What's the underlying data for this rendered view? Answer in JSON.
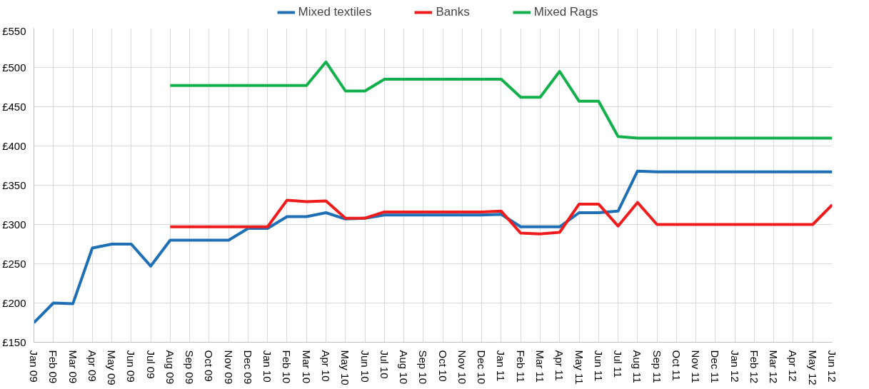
{
  "chart_data": {
    "type": "line",
    "categories": [
      "Jan 09",
      "Feb 09",
      "Mar 09",
      "Apr 09",
      "May 09",
      "Jun 09",
      "Jul 09",
      "Aug 09",
      "Sep 09",
      "Oct 09",
      "Nov 09",
      "Dec 09",
      "Jan 10",
      "Feb 10",
      "Mar 10",
      "Apr 10",
      "May 10",
      "Jun 10",
      "Jul 10",
      "Aug 10",
      "Sep 10",
      "Oct 10",
      "Nov 10",
      "Dec 10",
      "Jan 11",
      "Feb 11",
      "Mar 11",
      "Apr 11",
      "May 11",
      "Jun 11",
      "Jul 11",
      "Aug 11",
      "Sep 11",
      "Oct 11",
      "Nov 11",
      "Dec 11",
      "Jan 12",
      "Feb 12",
      "Mar 12",
      "Apr 12",
      "May 12",
      "Jun 12"
    ],
    "series": [
      {
        "name": "Mixed textiles",
        "color": "#1f6fb5",
        "values": [
          175,
          200,
          199,
          270,
          275,
          275,
          247,
          280,
          280,
          280,
          280,
          295,
          295,
          310,
          310,
          315,
          307,
          308,
          312,
          312,
          312,
          312,
          312,
          312,
          313,
          297,
          297,
          297,
          315,
          315,
          317,
          368,
          367,
          367,
          367,
          367,
          367,
          367,
          367,
          367,
          367,
          367
        ]
      },
      {
        "name": "Banks",
        "color": "#ee1c1c",
        "values": [
          null,
          null,
          null,
          null,
          null,
          null,
          null,
          297,
          297,
          297,
          297,
          297,
          297,
          331,
          329,
          330,
          308,
          308,
          316,
          316,
          316,
          316,
          316,
          316,
          317,
          289,
          288,
          290,
          326,
          326,
          298,
          328,
          300,
          300,
          300,
          300,
          300,
          300,
          300,
          300,
          300,
          325
        ]
      },
      {
        "name": "Mixed Rags",
        "color": "#12b04a",
        "values": [
          null,
          null,
          null,
          null,
          null,
          null,
          null,
          477,
          477,
          477,
          477,
          477,
          477,
          477,
          477,
          507,
          470,
          470,
          485,
          485,
          485,
          485,
          485,
          485,
          485,
          462,
          462,
          495,
          457,
          457,
          412,
          410,
          410,
          410,
          410,
          410,
          410,
          410,
          410,
          410,
          410,
          410
        ]
      }
    ],
    "ylim": [
      150,
      550
    ],
    "yticks": [
      {
        "value": 150,
        "label": "£150"
      },
      {
        "value": 200,
        "label": "£200"
      },
      {
        "value": 250,
        "label": "£250"
      },
      {
        "value": 300,
        "label": "£300"
      },
      {
        "value": 350,
        "label": "£350"
      },
      {
        "value": 400,
        "label": "£400"
      },
      {
        "value": 450,
        "label": "£450"
      },
      {
        "value": 500,
        "label": "£500"
      },
      {
        "value": 550,
        "label": "£550"
      }
    ],
    "grid": true,
    "legend": "top",
    "marker": "none",
    "line_style": "solid"
  }
}
